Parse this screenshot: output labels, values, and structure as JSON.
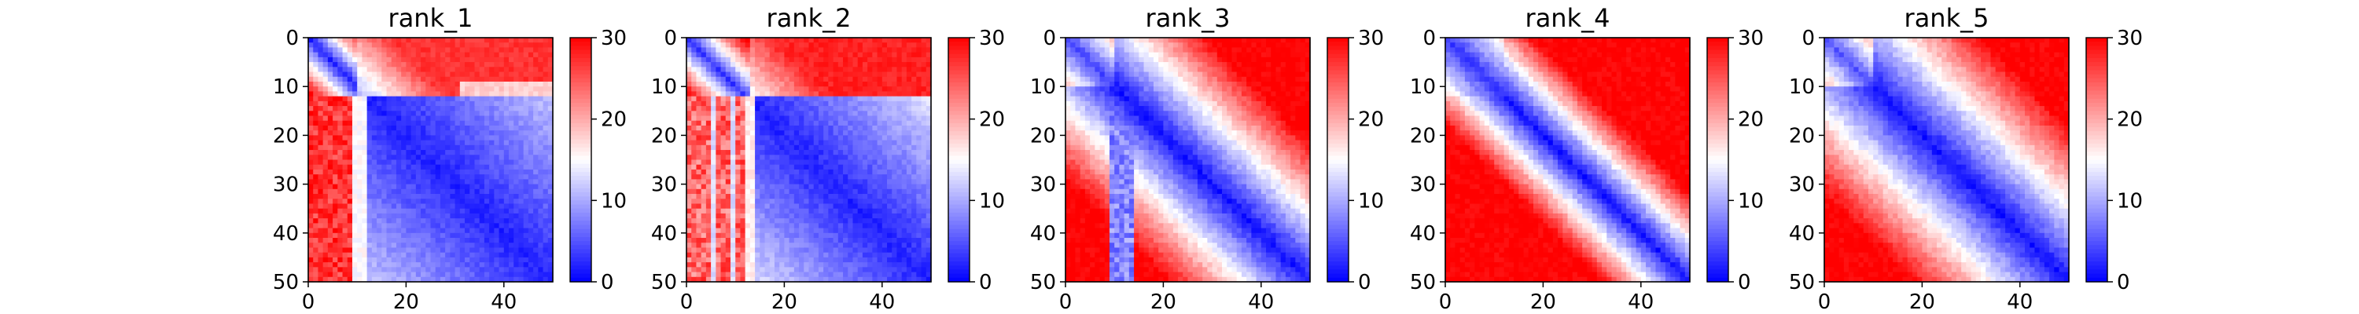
{
  "chart_data": [
    {
      "type": "heatmap",
      "title": "rank_1",
      "pattern": "rank_1",
      "x_ticks": [
        "0",
        "20",
        "40"
      ],
      "y_ticks": [
        "0",
        "10",
        "20",
        "30",
        "40",
        "50"
      ],
      "xlim": [
        0,
        50
      ],
      "ylim": [
        50,
        0
      ],
      "grid_size": 50,
      "colorbar": {
        "min": 0,
        "max": 30,
        "ticks": [
          "0",
          "10",
          "20",
          "30"
        ],
        "colormap": "bwr"
      }
    },
    {
      "type": "heatmap",
      "title": "rank_2",
      "pattern": "rank_2",
      "x_ticks": [
        "0",
        "20",
        "40"
      ],
      "y_ticks": [
        "0",
        "10",
        "20",
        "30",
        "40",
        "50"
      ],
      "xlim": [
        0,
        50
      ],
      "ylim": [
        50,
        0
      ],
      "grid_size": 50,
      "colorbar": {
        "min": 0,
        "max": 30,
        "ticks": [
          "0",
          "10",
          "20",
          "30"
        ],
        "colormap": "bwr"
      }
    },
    {
      "type": "heatmap",
      "title": "rank_3",
      "pattern": "rank_3",
      "x_ticks": [
        "0",
        "20",
        "40"
      ],
      "y_ticks": [
        "0",
        "10",
        "20",
        "30",
        "40",
        "50"
      ],
      "xlim": [
        0,
        50
      ],
      "ylim": [
        50,
        0
      ],
      "grid_size": 50,
      "colorbar": {
        "min": 0,
        "max": 30,
        "ticks": [
          "0",
          "10",
          "20",
          "30"
        ],
        "colormap": "bwr"
      }
    },
    {
      "type": "heatmap",
      "title": "rank_4",
      "pattern": "rank_4",
      "x_ticks": [
        "0",
        "20",
        "40"
      ],
      "y_ticks": [
        "0",
        "10",
        "20",
        "30",
        "40",
        "50"
      ],
      "xlim": [
        0,
        50
      ],
      "ylim": [
        50,
        0
      ],
      "grid_size": 50,
      "colorbar": {
        "min": 0,
        "max": 30,
        "ticks": [
          "0",
          "10",
          "20",
          "30"
        ],
        "colormap": "bwr"
      }
    },
    {
      "type": "heatmap",
      "title": "rank_5",
      "pattern": "rank_5",
      "x_ticks": [
        "0",
        "20",
        "40"
      ],
      "y_ticks": [
        "0",
        "10",
        "20",
        "30",
        "40",
        "50"
      ],
      "xlim": [
        0,
        50
      ],
      "ylim": [
        50,
        0
      ],
      "grid_size": 50,
      "colorbar": {
        "min": 0,
        "max": 30,
        "ticks": [
          "0",
          "10",
          "20",
          "30"
        ],
        "colormap": "bwr"
      }
    }
  ]
}
